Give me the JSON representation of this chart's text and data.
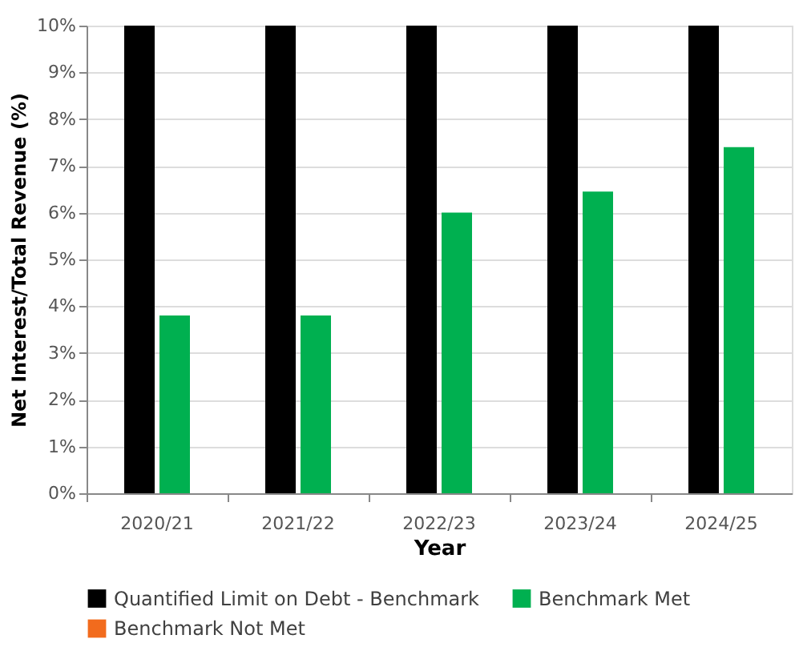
{
  "chart_data": {
    "type": "bar",
    "xlabel": "Year",
    "ylabel": "Net Interest/Total Revenue (%)",
    "categories": [
      "2020/21",
      "2021/22",
      "2022/23",
      "2023/24",
      "2024/25"
    ],
    "series": [
      {
        "name": "Quantified Limit on Debt - Benchmark",
        "color": "#000000",
        "values": [
          10,
          10,
          10,
          10,
          10
        ]
      },
      {
        "name": "Benchmark Met",
        "color": "#00b050",
        "values": [
          3.8,
          3.8,
          6.0,
          6.45,
          7.4
        ]
      },
      {
        "name": "Benchmark Not Met",
        "color": "#f26b1d",
        "values": [
          null,
          null,
          null,
          null,
          null
        ]
      }
    ],
    "ylim": [
      0,
      10
    ],
    "yticks": [
      {
        "value": 0,
        "label": "0%"
      },
      {
        "value": 1,
        "label": "1%"
      },
      {
        "value": 2,
        "label": "2%"
      },
      {
        "value": 3,
        "label": "3%"
      },
      {
        "value": 4,
        "label": "4%"
      },
      {
        "value": 5,
        "label": "5%"
      },
      {
        "value": 6,
        "label": "6%"
      },
      {
        "value": 7,
        "label": "7%"
      },
      {
        "value": 8,
        "label": "8%"
      },
      {
        "value": 9,
        "label": "9%"
      },
      {
        "value": 10,
        "label": "10%"
      }
    ],
    "grid": "y",
    "legend": "bottom"
  }
}
